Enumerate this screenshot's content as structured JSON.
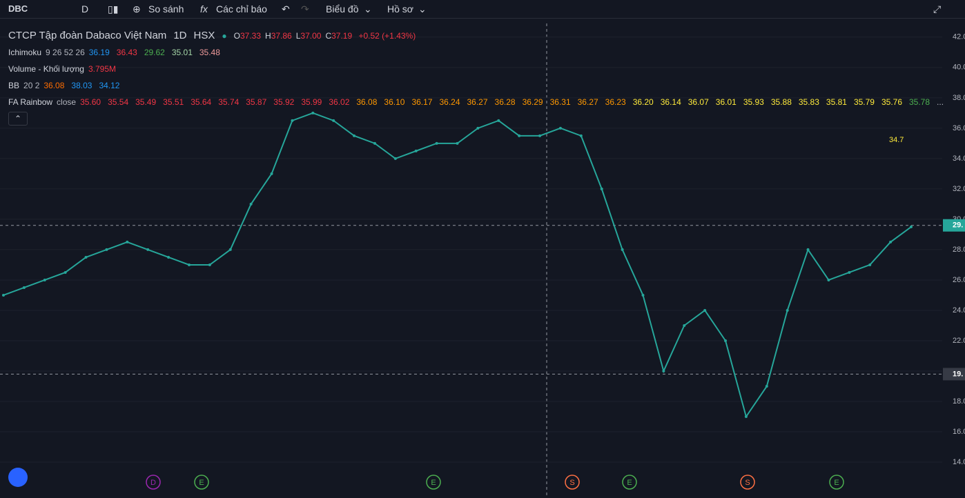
{
  "toolbar": {
    "symbol": "DBC",
    "interval": "D",
    "compare": "So sánh",
    "indicators": "Các chỉ báo",
    "chart_menu": "Biểu đồ",
    "profile_menu": "Hồ sơ"
  },
  "legend": {
    "title": "CTCP Tập đoàn Dabaco Việt Nam",
    "interval": "1D",
    "exchange": "HSX",
    "ohlc": [
      {
        "key": "O",
        "value": "37.33"
      },
      {
        "key": "H",
        "value": "37.86"
      },
      {
        "key": "L",
        "value": "37.00"
      },
      {
        "key": "C",
        "value": "37.19"
      }
    ],
    "change": "+0.52 (+1.43%)"
  },
  "indicators": [
    {
      "name": "Ichimoku",
      "params": "9 26 52 26",
      "items": [
        {
          "text": "36.19",
          "color": "#2196f3"
        },
        {
          "text": "36.43",
          "color": "#f23645"
        },
        {
          "text": "29.62",
          "color": "#4caf50"
        },
        {
          "text": "35.01",
          "color": "#a5d6a7"
        },
        {
          "text": "35.48",
          "color": "#ef9a9a"
        }
      ]
    },
    {
      "name": "Volume - Khối lượng",
      "params": "",
      "items": [
        {
          "text": "3.795M",
          "color": "#f23645"
        }
      ]
    },
    {
      "name": "BB",
      "params": "20 2",
      "items": [
        {
          "text": "36.08",
          "color": "#ff6d00"
        },
        {
          "text": "38.03",
          "color": "#2196f3"
        },
        {
          "text": "34.12",
          "color": "#2196f3"
        }
      ]
    },
    {
      "name": "FA Rainbow",
      "params": "close",
      "items": [
        {
          "text": "35.60",
          "color": "#f23645"
        },
        {
          "text": "35.54",
          "color": "#f23645"
        },
        {
          "text": "35.49",
          "color": "#f23645"
        },
        {
          "text": "35.51",
          "color": "#f23645"
        },
        {
          "text": "35.64",
          "color": "#f23645"
        },
        {
          "text": "35.74",
          "color": "#f23645"
        },
        {
          "text": "35.87",
          "color": "#f23645"
        },
        {
          "text": "35.92",
          "color": "#f23645"
        },
        {
          "text": "35.99",
          "color": "#f23645"
        },
        {
          "text": "36.02",
          "color": "#f23645"
        },
        {
          "text": "36.08",
          "color": "#ff9800"
        },
        {
          "text": "36.10",
          "color": "#ff9800"
        },
        {
          "text": "36.17",
          "color": "#ff9800"
        },
        {
          "text": "36.24",
          "color": "#ff9800"
        },
        {
          "text": "36.27",
          "color": "#ff9800"
        },
        {
          "text": "36.28",
          "color": "#ff9800"
        },
        {
          "text": "36.29",
          "color": "#ff9800"
        },
        {
          "text": "36.31",
          "color": "#ff9800"
        },
        {
          "text": "36.27",
          "color": "#ff9800"
        },
        {
          "text": "36.23",
          "color": "#ff9800"
        },
        {
          "text": "36.20",
          "color": "#ffeb3b"
        },
        {
          "text": "36.14",
          "color": "#ffeb3b"
        },
        {
          "text": "36.07",
          "color": "#ffeb3b"
        },
        {
          "text": "36.01",
          "color": "#ffeb3b"
        },
        {
          "text": "35.93",
          "color": "#ffeb3b"
        },
        {
          "text": "35.88",
          "color": "#ffeb3b"
        },
        {
          "text": "35.83",
          "color": "#ffeb3b"
        },
        {
          "text": "35.81",
          "color": "#ffeb3b"
        },
        {
          "text": "35.79",
          "color": "#ffeb3b"
        },
        {
          "text": "35.76",
          "color": "#ffeb3b"
        },
        {
          "text": "35.78",
          "color": "#4caf50"
        },
        {
          "text": "...",
          "color": "#b2b5be"
        }
      ]
    }
  ],
  "chart_data": {
    "type": "line",
    "color": "#26a69a",
    "values": [
      25,
      25.5,
      26,
      26.5,
      27.5,
      28,
      28.5,
      28,
      27.5,
      27,
      27,
      28,
      31,
      33,
      36.5,
      37,
      36.5,
      35.5,
      35,
      34,
      34.5,
      35,
      35,
      36,
      36.5,
      35.5,
      35.5,
      36,
      35.5,
      32,
      28,
      25,
      20,
      23,
      24,
      22,
      17,
      19,
      24,
      28,
      26,
      26.5,
      27,
      28.5,
      29.5
    ],
    "ylim": [
      11.64,
      42.9
    ],
    "yticks": [
      {
        "value": 42,
        "label": "42.00"
      },
      {
        "value": 40,
        "label": "40.00"
      },
      {
        "value": 38,
        "label": "38.00"
      },
      {
        "value": 36,
        "label": "36.00"
      },
      {
        "value": 34,
        "label": "34.00"
      },
      {
        "value": 32,
        "label": "32.00"
      },
      {
        "value": 30,
        "label": "30.00"
      },
      {
        "value": 28,
        "label": "28.00"
      },
      {
        "value": 26,
        "label": "26.00"
      },
      {
        "value": 24,
        "label": "24.00"
      },
      {
        "value": 22,
        "label": "22.00"
      },
      {
        "value": 20,
        "label": "20.00"
      },
      {
        "value": 18,
        "label": "18.00"
      },
      {
        "value": 16,
        "label": "16.00"
      },
      {
        "value": 14,
        "label": "14.00"
      }
    ],
    "price_markers": [
      {
        "value": 29.6,
        "label": "29."
      },
      {
        "value": 19.8,
        "label": "19."
      }
    ],
    "annotation": "34.7",
    "events": [
      {
        "label": "D",
        "color": "#9c27b0"
      },
      {
        "label": "E",
        "color": "#4caf50"
      },
      {
        "label": "E",
        "color": "#4caf50"
      },
      {
        "label": "S",
        "color": "#ff7043"
      },
      {
        "label": "E",
        "color": "#4caf50"
      },
      {
        "label": "S",
        "color": "#ff7043"
      },
      {
        "label": "E",
        "color": "#4caf50"
      }
    ]
  }
}
